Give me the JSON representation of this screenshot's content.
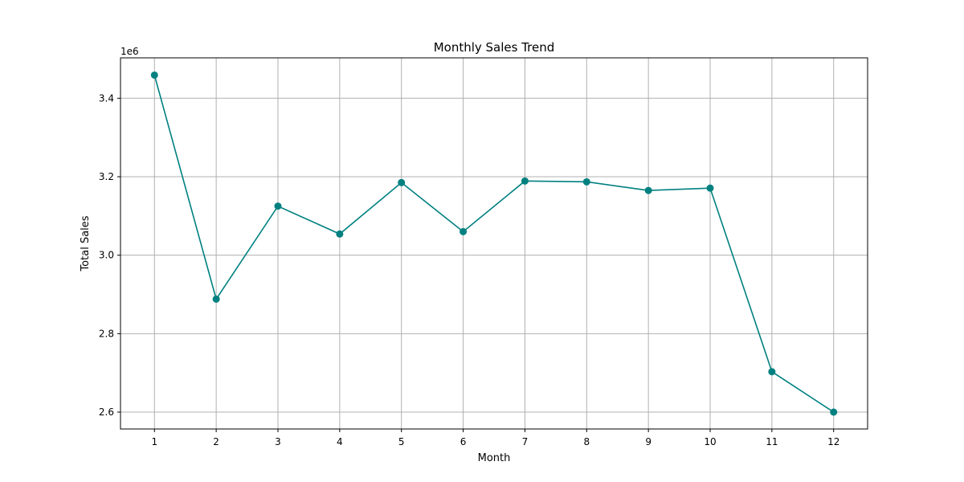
{
  "chart_data": {
    "type": "line",
    "title": "Monthly Sales Trend",
    "xlabel": "Month",
    "ylabel": "Total Sales",
    "y_offset_label": "1e6",
    "x": [
      1,
      2,
      3,
      4,
      5,
      6,
      7,
      8,
      9,
      10,
      11,
      12
    ],
    "x_tick_labels": [
      "1",
      "2",
      "3",
      "4",
      "5",
      "6",
      "7",
      "8",
      "9",
      "10",
      "11",
      "12"
    ],
    "y_tick_values": [
      2.6,
      2.8,
      3.0,
      3.2,
      3.4
    ],
    "y_tick_labels": [
      "2.6",
      "2.8",
      "3.0",
      "3.2",
      "3.4"
    ],
    "xlim": [
      0.45,
      12.55
    ],
    "ylim": [
      2.557,
      3.503
    ],
    "grid": true,
    "series": [
      {
        "values": [
          3.459,
          2.888,
          3.125,
          3.054,
          3.185,
          3.06,
          3.189,
          3.187,
          3.165,
          3.171,
          2.703,
          2.6
        ],
        "color": "#008080",
        "marker": "circle"
      }
    ]
  }
}
